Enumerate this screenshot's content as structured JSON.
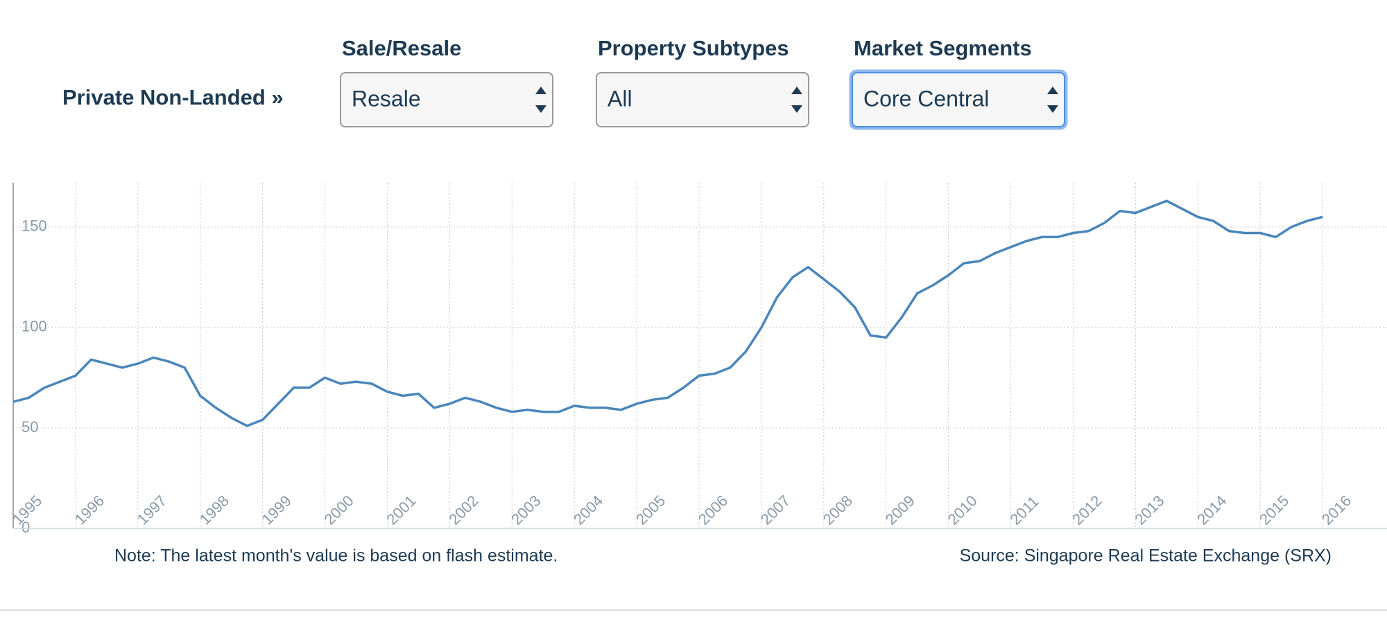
{
  "header": {
    "segment": "Private Non-Landed »"
  },
  "filters": [
    {
      "label": "Sale/Resale",
      "selected": "Resale"
    },
    {
      "label": "Property Subtypes",
      "selected": "All"
    },
    {
      "label": "Market Segments",
      "selected": "Core Central"
    }
  ],
  "chart_data": {
    "type": "line",
    "x": [
      1995,
      1995.25,
      1995.5,
      1995.75,
      1996,
      1996.25,
      1996.5,
      1996.75,
      1997,
      1997.25,
      1997.5,
      1997.75,
      1998,
      1998.25,
      1998.5,
      1998.75,
      1999,
      1999.25,
      1999.5,
      1999.75,
      2000,
      2000.25,
      2000.5,
      2000.75,
      2001,
      2001.25,
      2001.5,
      2001.75,
      2002,
      2002.25,
      2002.5,
      2002.75,
      2003,
      2003.25,
      2003.5,
      2003.75,
      2004,
      2004.25,
      2004.5,
      2004.75,
      2005,
      2005.25,
      2005.5,
      2005.75,
      2006,
      2006.25,
      2006.5,
      2006.75,
      2007,
      2007.25,
      2007.5,
      2007.75,
      2008,
      2008.25,
      2008.5,
      2008.75,
      2009,
      2009.25,
      2009.5,
      2009.75,
      2010,
      2010.25,
      2010.5,
      2010.75,
      2011,
      2011.25,
      2011.5,
      2011.75,
      2012,
      2012.25,
      2012.5,
      2012.75,
      2013,
      2013.25,
      2013.5,
      2013.75,
      2014,
      2014.25,
      2014.5,
      2014.75,
      2015,
      2015.25,
      2015.5,
      2015.75,
      2016
    ],
    "series": [
      {
        "color": "#4a86bb",
        "values": [
          63,
          65,
          70,
          73,
          76,
          84,
          82,
          80,
          82,
          85,
          83,
          80,
          66,
          60,
          55,
          51,
          54,
          62,
          70,
          70,
          75,
          72,
          73,
          72,
          68,
          66,
          67,
          60,
          62,
          65,
          63,
          60,
          58,
          59,
          58,
          58,
          61,
          60,
          60,
          59,
          62,
          64,
          65,
          70,
          76,
          77,
          80,
          88,
          100,
          115,
          125,
          130,
          124,
          118,
          110,
          96,
          95,
          105,
          117,
          121,
          126,
          132,
          133,
          137,
          140,
          143,
          145,
          145,
          147,
          148,
          152,
          158,
          157,
          160,
          163,
          159,
          155,
          153,
          148,
          147,
          147,
          145,
          150,
          153,
          155
        ]
      }
    ],
    "xlim": [
      1995,
      2016.8
    ],
    "xticks": [
      1995,
      1996,
      1997,
      1998,
      1999,
      2000,
      2001,
      2002,
      2003,
      2004,
      2005,
      2006,
      2007,
      2008,
      2009,
      2010,
      2011,
      2012,
      2013,
      2014,
      2015,
      2016
    ],
    "ylim": [
      0,
      172
    ],
    "yticks": [
      0,
      50,
      100,
      150
    ],
    "grid": true,
    "note": "Note: The latest month's value is based on flash estimate.",
    "source": "Source: Singapore Real Estate Exchange (SRX)"
  }
}
